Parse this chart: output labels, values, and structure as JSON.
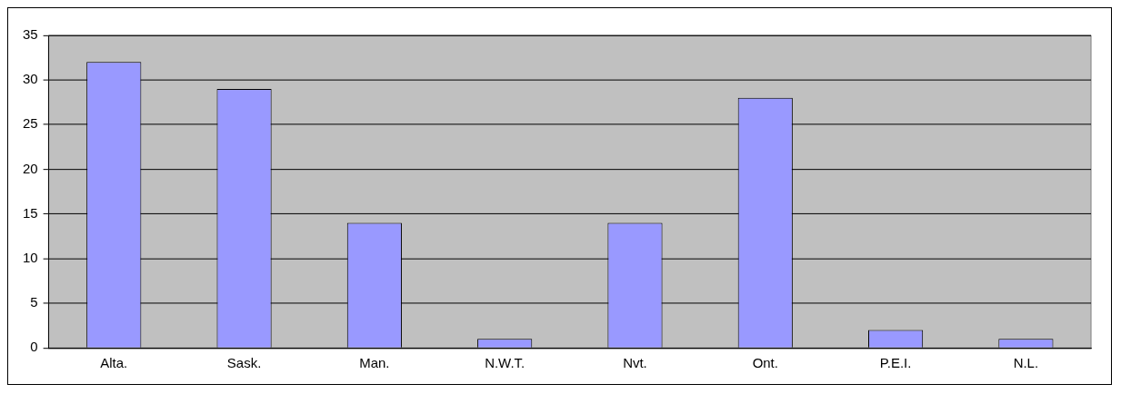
{
  "chart_data": {
    "type": "bar",
    "categories": [
      "Alta.",
      "Sask.",
      "Man.",
      "N.W.T.",
      "Nvt.",
      "Ont.",
      "P.E.I.",
      "N.L."
    ],
    "values": [
      32,
      29,
      14,
      1,
      14,
      28,
      2,
      1
    ],
    "color": "#9999ff",
    "ylim": [
      0,
      35
    ],
    "yticks": [
      0,
      5,
      10,
      15,
      20,
      25,
      30,
      35
    ],
    "grid": "y",
    "legend": false
  }
}
